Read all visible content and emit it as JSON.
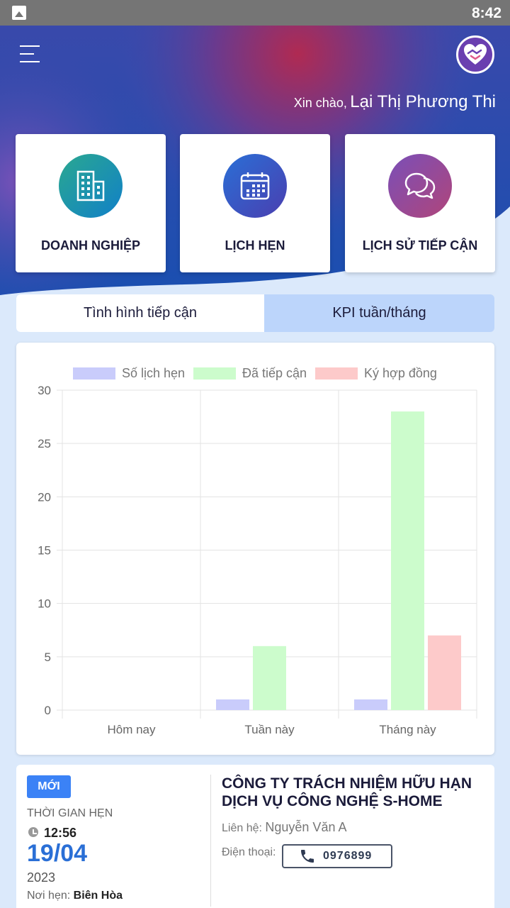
{
  "status_bar": {
    "time": "8:42",
    "notification_icon": "image-icon"
  },
  "header": {
    "menu_icon": "hamburger-icon",
    "logo_icon": "heart-handshake-logo",
    "greeting": "Xin chào,",
    "user_name": "Lại Thị Phương Thi"
  },
  "shortcuts": [
    {
      "label": "DOANH NGHIỆP",
      "icon": "building-icon",
      "color": "#1a9bb0"
    },
    {
      "label": "LỊCH HẸN",
      "icon": "calendar-icon",
      "color": "#2a6fd6"
    },
    {
      "label": "LỊCH SỬ TIẾP CẬN",
      "icon": "chat-bubbles-icon",
      "color": "#8a4fb0"
    }
  ],
  "tabs": [
    {
      "label": "Tình hình tiếp cận",
      "active": true
    },
    {
      "label": "KPI tuần/tháng",
      "active": false
    }
  ],
  "chart_data": {
    "type": "bar",
    "categories": [
      "Hôm nay",
      "Tuần này",
      "Tháng này"
    ],
    "series": [
      {
        "name": "Số lịch hẹn",
        "values": [
          0,
          1,
          1
        ],
        "color": "#c9ccfb"
      },
      {
        "name": "Đã tiếp cận",
        "values": [
          0,
          6,
          28
        ],
        "color": "#ccfccc"
      },
      {
        "name": "Ký hợp đồng",
        "values": [
          0,
          0,
          7
        ],
        "color": "#fdcaca"
      }
    ],
    "ylim": [
      0,
      30
    ],
    "yticks": [
      0,
      5,
      10,
      15,
      20,
      25,
      30
    ],
    "legend": "top",
    "grid": true
  },
  "appointment": {
    "badge": "MỚI",
    "time_label": "THỜI GIAN HẸN",
    "time": "12:56",
    "date": "19/04",
    "year": "2023",
    "place_label": "Nơi hẹn:",
    "place": "Biên Hòa",
    "company": "CÔNG TY TRÁCH NHIỆM HỮU HẠN DỊCH VỤ CÔNG NGHỆ S-HOME",
    "contact_label": "Liên hệ:",
    "contact_name": "Nguyễn Văn A",
    "phone_label": "Điện thoại:",
    "phone": "0976899"
  }
}
